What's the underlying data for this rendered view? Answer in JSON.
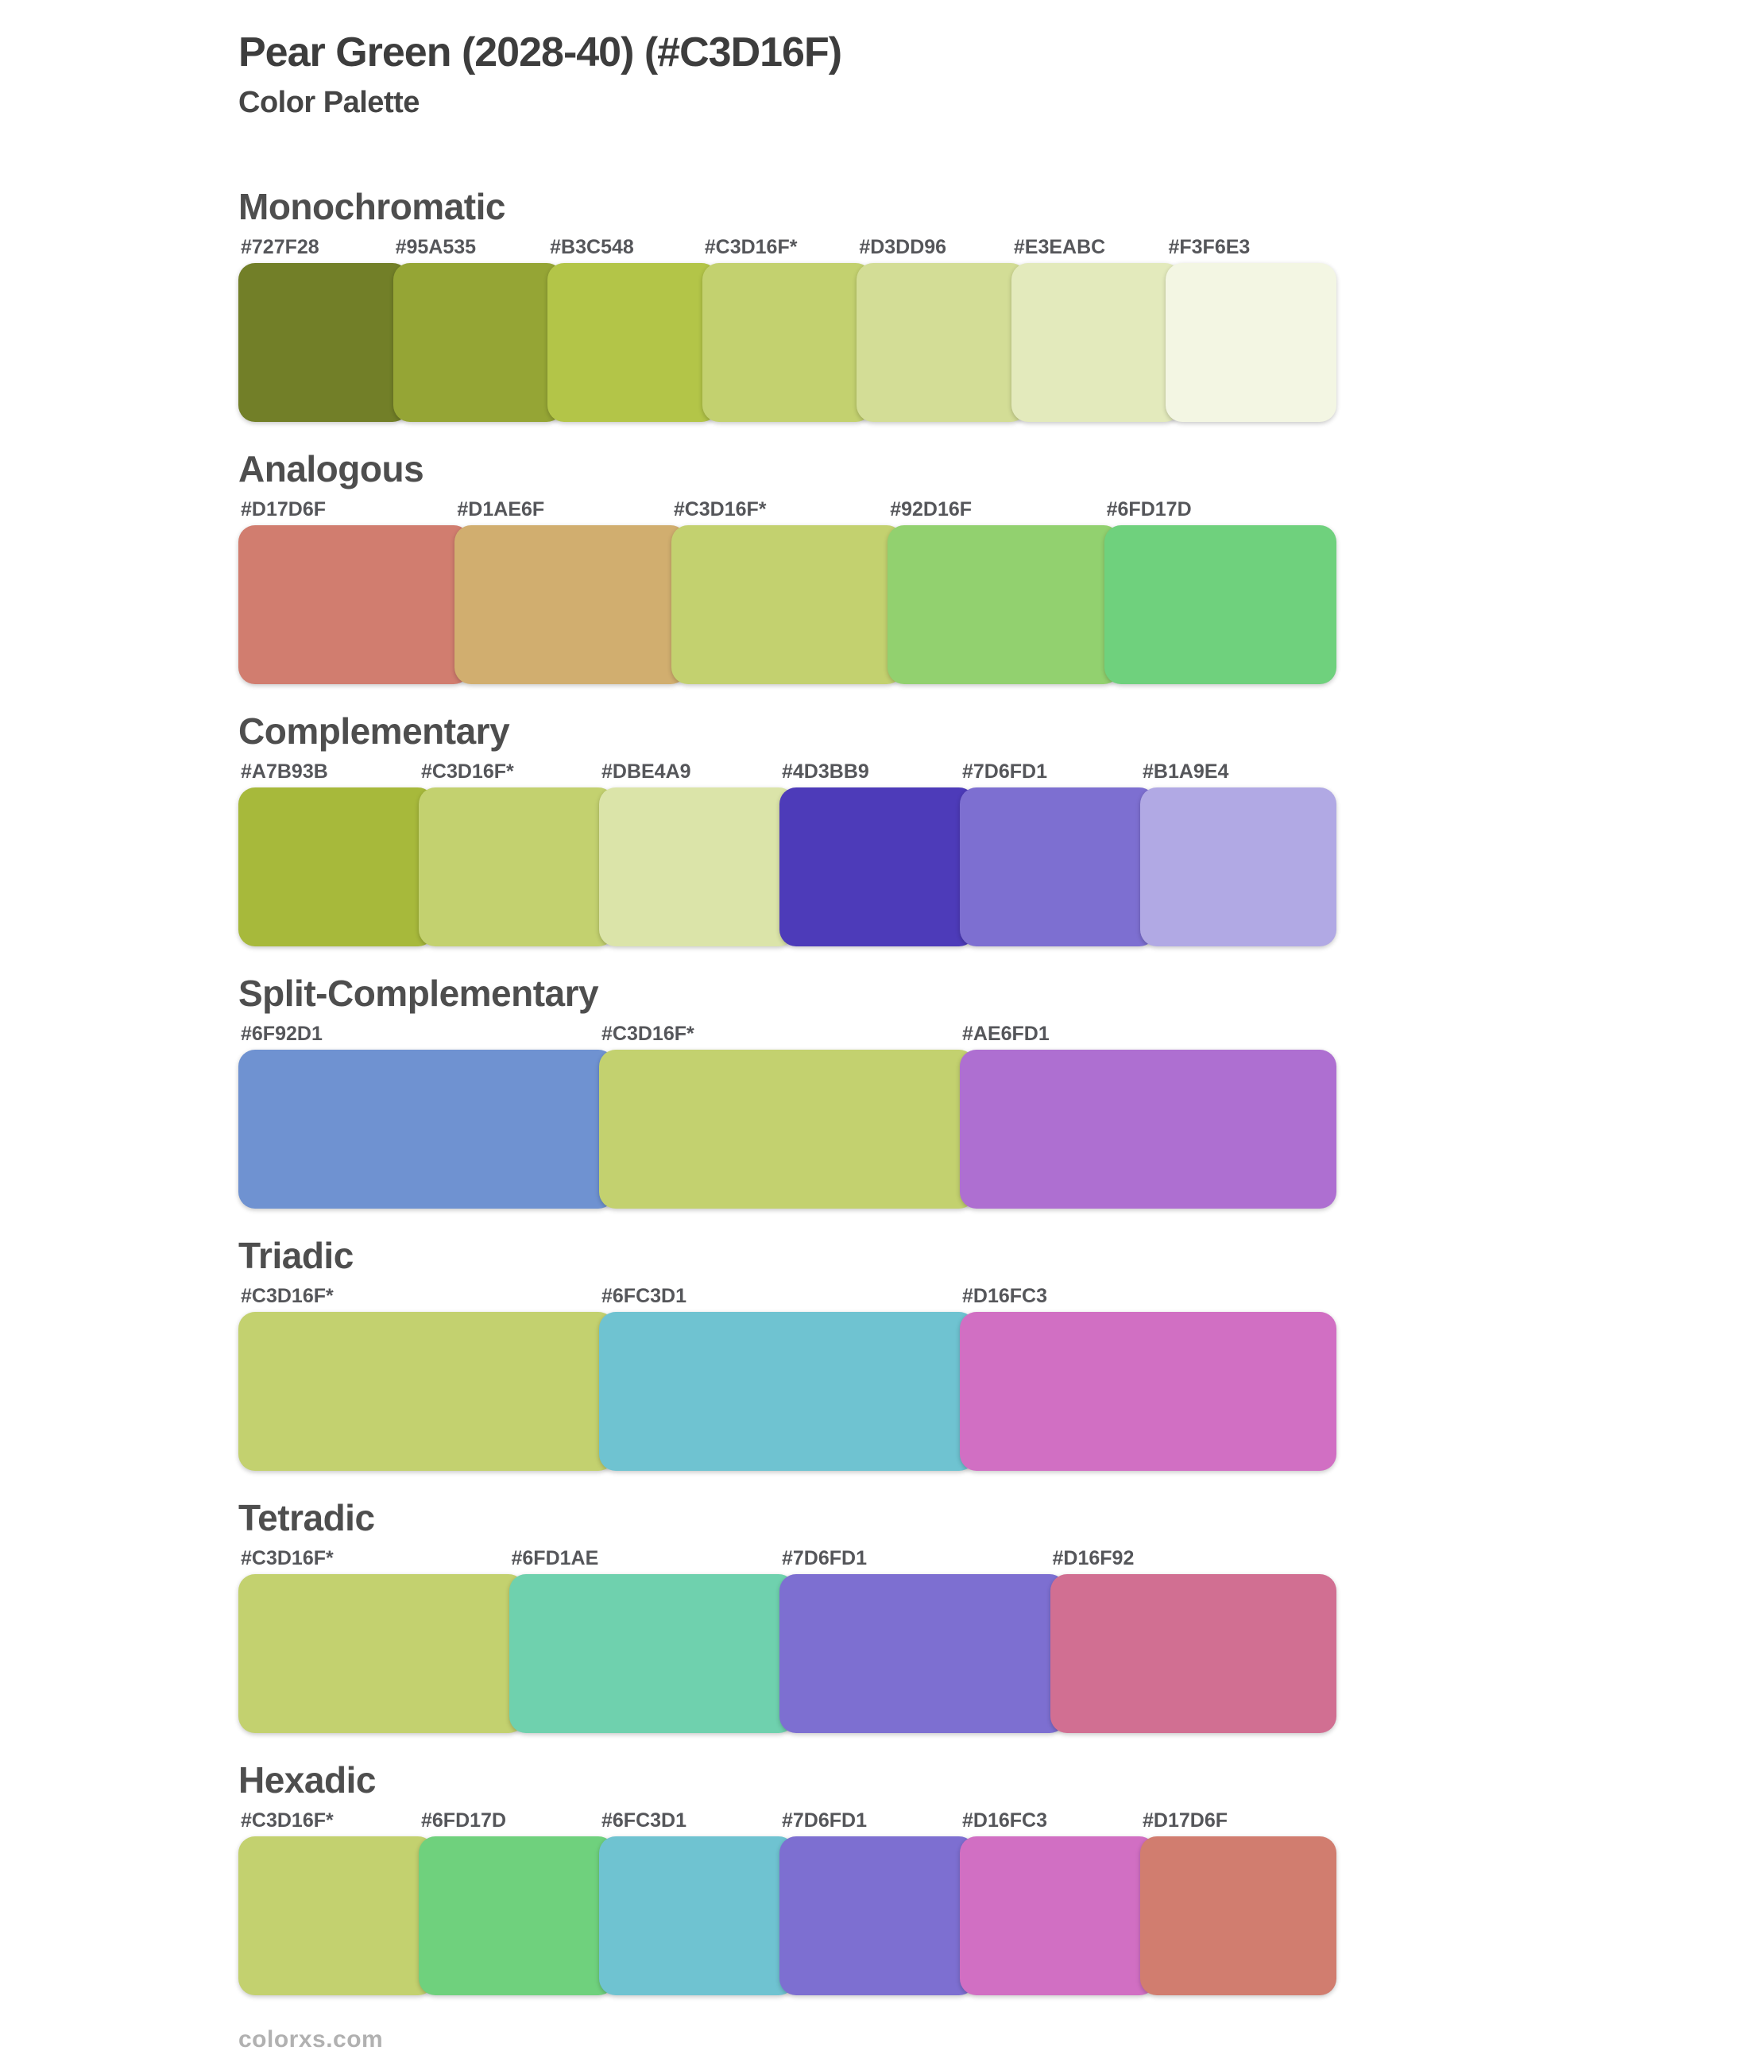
{
  "page": {
    "title": "Pear Green (2028-40) (#C3D16F)",
    "subtitle": "Color Palette",
    "base_hex": "#C3D16F",
    "footer": "colorxs.com"
  },
  "sections": [
    {
      "name": "Monochromatic",
      "swatches": [
        {
          "label": "#727F28",
          "color": "#727F28"
        },
        {
          "label": "#95A535",
          "color": "#95A535"
        },
        {
          "label": "#B3C548",
          "color": "#B3C548"
        },
        {
          "label": "#C3D16F*",
          "color": "#C3D16F"
        },
        {
          "label": "#D3DD96",
          "color": "#D3DD96"
        },
        {
          "label": "#E3EABC",
          "color": "#E3EABC"
        },
        {
          "label": "#F3F6E3",
          "color": "#F3F6E3"
        }
      ]
    },
    {
      "name": "Analogous",
      "swatches": [
        {
          "label": "#D17D6F",
          "color": "#D17D6F"
        },
        {
          "label": "#D1AE6F",
          "color": "#D1AE6F"
        },
        {
          "label": "#C3D16F*",
          "color": "#C3D16F"
        },
        {
          "label": "#92D16F",
          "color": "#92D16F"
        },
        {
          "label": "#6FD17D",
          "color": "#6FD17D"
        }
      ]
    },
    {
      "name": "Complementary",
      "swatches": [
        {
          "label": "#A7B93B",
          "color": "#A7B93B"
        },
        {
          "label": "#C3D16F*",
          "color": "#C3D16F"
        },
        {
          "label": "#DBE4A9",
          "color": "#DBE4A9"
        },
        {
          "label": "#4D3BB9",
          "color": "#4D3BB9"
        },
        {
          "label": "#7D6FD1",
          "color": "#7D6FD1"
        },
        {
          "label": "#B1A9E4",
          "color": "#B1A9E4"
        }
      ]
    },
    {
      "name": "Split-Complementary",
      "swatches": [
        {
          "label": "#6F92D1",
          "color": "#6F92D1"
        },
        {
          "label": "#C3D16F*",
          "color": "#C3D16F"
        },
        {
          "label": "#AE6FD1",
          "color": "#AE6FD1"
        }
      ]
    },
    {
      "name": "Triadic",
      "swatches": [
        {
          "label": "#C3D16F*",
          "color": "#C3D16F"
        },
        {
          "label": "#6FC3D1",
          "color": "#6FC3D1"
        },
        {
          "label": "#D16FC3",
          "color": "#D16FC3"
        }
      ]
    },
    {
      "name": "Tetradic",
      "swatches": [
        {
          "label": "#C3D16F*",
          "color": "#C3D16F"
        },
        {
          "label": "#6FD1AE",
          "color": "#6FD1AE"
        },
        {
          "label": "#7D6FD1",
          "color": "#7D6FD1"
        },
        {
          "label": "#D16F92",
          "color": "#D16F92"
        }
      ]
    },
    {
      "name": "Hexadic",
      "swatches": [
        {
          "label": "#C3D16F*",
          "color": "#C3D16F"
        },
        {
          "label": "#6FD17D",
          "color": "#6FD17D"
        },
        {
          "label": "#6FC3D1",
          "color": "#6FC3D1"
        },
        {
          "label": "#7D6FD1",
          "color": "#7D6FD1"
        },
        {
          "label": "#D16FC3",
          "color": "#D16FC3"
        },
        {
          "label": "#D17D6F",
          "color": "#D17D6F"
        }
      ]
    }
  ]
}
